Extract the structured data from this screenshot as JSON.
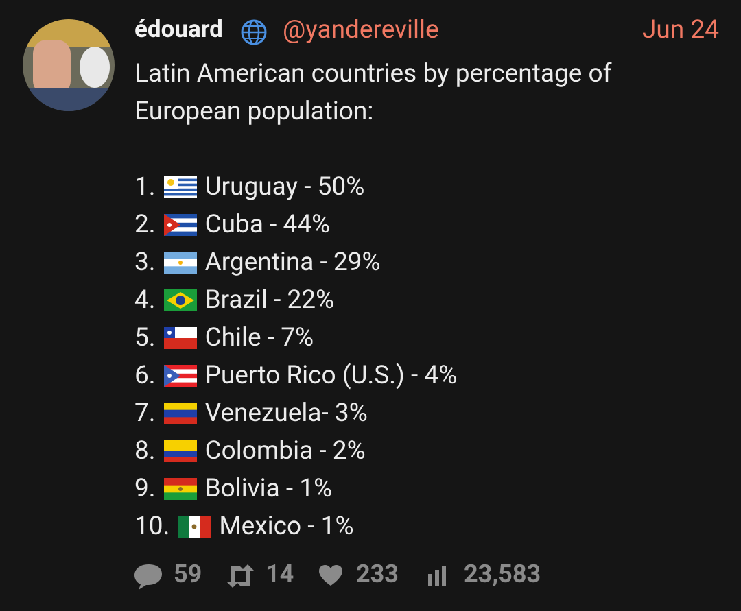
{
  "author": {
    "name": "édouard",
    "handle": "@yandereville",
    "date": "Jun 24"
  },
  "body": {
    "intro": [
      "Latin American countries by percentage of",
      "European population:"
    ],
    "items": [
      {
        "rank": "1.",
        "text": "Uruguay - 50%"
      },
      {
        "rank": "2.",
        "text": "Cuba - 44%"
      },
      {
        "rank": "3.",
        "text": "Argentina - 29%"
      },
      {
        "rank": "4.",
        "text": "Brazil - 22%"
      },
      {
        "rank": "5.",
        "text": "Chile - 7%"
      },
      {
        "rank": "6.",
        "text": "Puerto Rico (U.S.) - 4%"
      },
      {
        "rank": "7.",
        "text": "Venezuela- 3%"
      },
      {
        "rank": "8.",
        "text": "Colombia - 2%"
      },
      {
        "rank": "9.",
        "text": "Bolivia - 1%"
      },
      {
        "rank": "10.",
        "text": "Mexico - 1%"
      }
    ]
  },
  "stats": {
    "replies": "59",
    "retweets": "14",
    "likes": "233",
    "views": "23,583"
  }
}
